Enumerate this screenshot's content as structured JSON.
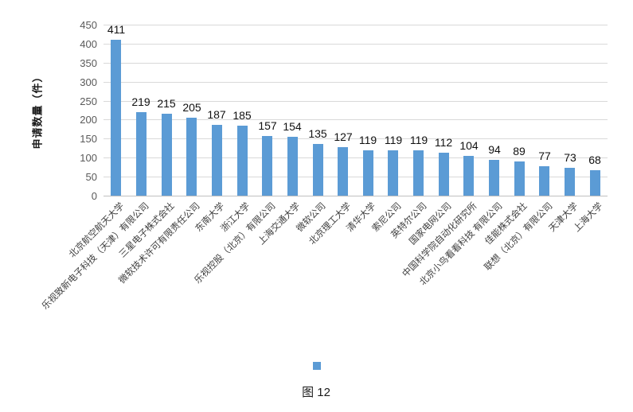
{
  "chart_data": {
    "type": "bar",
    "title": "",
    "xlabel": "",
    "ylabel": "申请数量（件）",
    "ylim": [
      0,
      450
    ],
    "yticks": [
      0,
      50,
      100,
      150,
      200,
      250,
      300,
      350,
      400,
      450
    ],
    "grid": "horizontal",
    "data_labels_shown": true,
    "legend_position": "bottom",
    "legend_label": "",
    "categories": [
      "北京航空航天大学",
      "乐视致新电子科技（天津）有限公司",
      "三星电子株式会社",
      "微软技术许可有限责任公司",
      "东南大学",
      "浙江大学",
      "乐视控股（北京）有限公司",
      "上海交通大学",
      "微软公司",
      "北京理工大学",
      "清华大学",
      "索尼公司",
      "英特尔公司",
      "国家电网公司",
      "中国科学院自动化研究所",
      "北京小鸟看看科技 有限公司",
      "佳能株式会社",
      "联想（北京）有限公司",
      "天津大学",
      "上海大学"
    ],
    "values": [
      411,
      219,
      215,
      205,
      187,
      185,
      157,
      154,
      135,
      127,
      119,
      119,
      119,
      112,
      104,
      94,
      89,
      77,
      73,
      68
    ]
  },
  "caption": "图 12",
  "colors": {
    "bar": "#5b9bd5",
    "grid": "#d9d9d9",
    "axis_text": "#595959",
    "value_text": "#111111",
    "category_text": "#404040"
  }
}
